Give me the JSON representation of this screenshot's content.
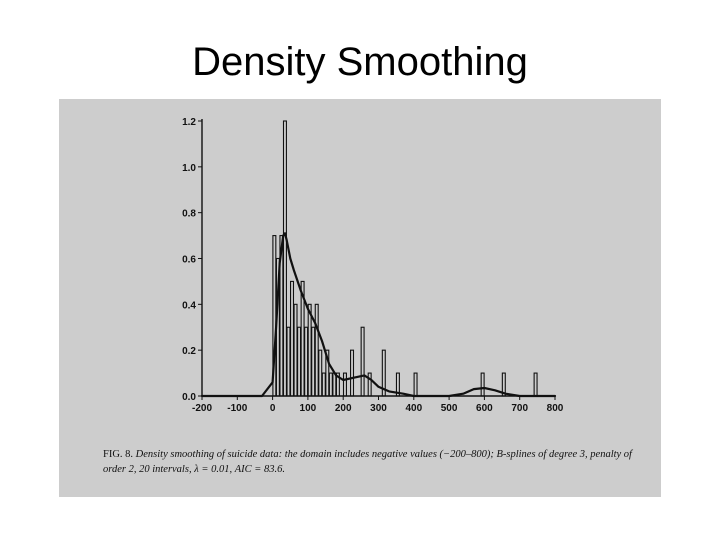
{
  "slide": {
    "title": "Density Smoothing"
  },
  "chart_data": {
    "type": "bar",
    "title": "",
    "xlabel": "",
    "ylabel": "",
    "xlim": [
      -200,
      800
    ],
    "ylim": [
      0,
      1.2
    ],
    "x_ticks": [
      "-200",
      "-100",
      "0",
      "100",
      "200",
      "300",
      "400",
      "500",
      "600",
      "700",
      "800"
    ],
    "y_ticks": [
      "0.0",
      "0.2",
      "0.4",
      "0.6",
      "0.8",
      "1.0",
      "1.2"
    ],
    "grid": false,
    "series": [
      {
        "type": "histogram",
        "bin_width": 10,
        "bins": [
          {
            "x0": 0,
            "x1": 10,
            "value": 0.7
          },
          {
            "x0": 10,
            "x1": 20,
            "value": 0.6
          },
          {
            "x0": 20,
            "x1": 30,
            "value": 0.7
          },
          {
            "x0": 30,
            "x1": 40,
            "value": 1.2
          },
          {
            "x0": 40,
            "x1": 50,
            "value": 0.3
          },
          {
            "x0": 50,
            "x1": 60,
            "value": 0.5
          },
          {
            "x0": 60,
            "x1": 70,
            "value": 0.4
          },
          {
            "x0": 70,
            "x1": 80,
            "value": 0.3
          },
          {
            "x0": 80,
            "x1": 90,
            "value": 0.5
          },
          {
            "x0": 90,
            "x1": 100,
            "value": 0.3
          },
          {
            "x0": 100,
            "x1": 110,
            "value": 0.4
          },
          {
            "x0": 110,
            "x1": 120,
            "value": 0.3
          },
          {
            "x0": 120,
            "x1": 130,
            "value": 0.4
          },
          {
            "x0": 130,
            "x1": 140,
            "value": 0.2
          },
          {
            "x0": 140,
            "x1": 150,
            "value": 0.1
          },
          {
            "x0": 150,
            "x1": 160,
            "value": 0.2
          },
          {
            "x0": 160,
            "x1": 170,
            "value": 0.1
          },
          {
            "x0": 170,
            "x1": 180,
            "value": 0.1
          },
          {
            "x0": 180,
            "x1": 190,
            "value": 0.1
          },
          {
            "x0": 200,
            "x1": 210,
            "value": 0.1
          },
          {
            "x0": 220,
            "x1": 230,
            "value": 0.2
          },
          {
            "x0": 250,
            "x1": 260,
            "value": 0.3
          },
          {
            "x0": 270,
            "x1": 280,
            "value": 0.1
          },
          {
            "x0": 310,
            "x1": 320,
            "value": 0.2
          },
          {
            "x0": 350,
            "x1": 360,
            "value": 0.1
          },
          {
            "x0": 400,
            "x1": 410,
            "value": 0.1
          },
          {
            "x0": 590,
            "x1": 600,
            "value": 0.1
          },
          {
            "x0": 650,
            "x1": 660,
            "value": 0.1
          },
          {
            "x0": 740,
            "x1": 750,
            "value": 0.1
          }
        ]
      },
      {
        "type": "line",
        "x": [
          -200,
          -100,
          -30,
          0,
          10,
          20,
          30,
          35,
          40,
          50,
          60,
          80,
          100,
          120,
          140,
          160,
          180,
          200,
          230,
          260,
          280,
          300,
          330,
          370,
          400,
          450,
          500,
          540,
          570,
          600,
          630,
          660,
          700,
          800
        ],
        "y": [
          0.0,
          0.0,
          0.0,
          0.06,
          0.3,
          0.58,
          0.7,
          0.71,
          0.68,
          0.6,
          0.55,
          0.46,
          0.38,
          0.32,
          0.24,
          0.14,
          0.09,
          0.07,
          0.08,
          0.09,
          0.07,
          0.04,
          0.02,
          0.01,
          0.0,
          0.0,
          0.0,
          0.01,
          0.03,
          0.035,
          0.025,
          0.01,
          0.0,
          0.0
        ]
      }
    ]
  },
  "caption": {
    "lead": "FIG. 8.",
    "text": "Density smoothing of suicide data: the domain includes negative values (−200–800); B-splines of degree 3, penalty of order 2, 20 intervals, λ = 0.01, AIC = 83.6."
  },
  "colors": {
    "figure_background": "#cdcdcd",
    "ink": "#111111"
  }
}
